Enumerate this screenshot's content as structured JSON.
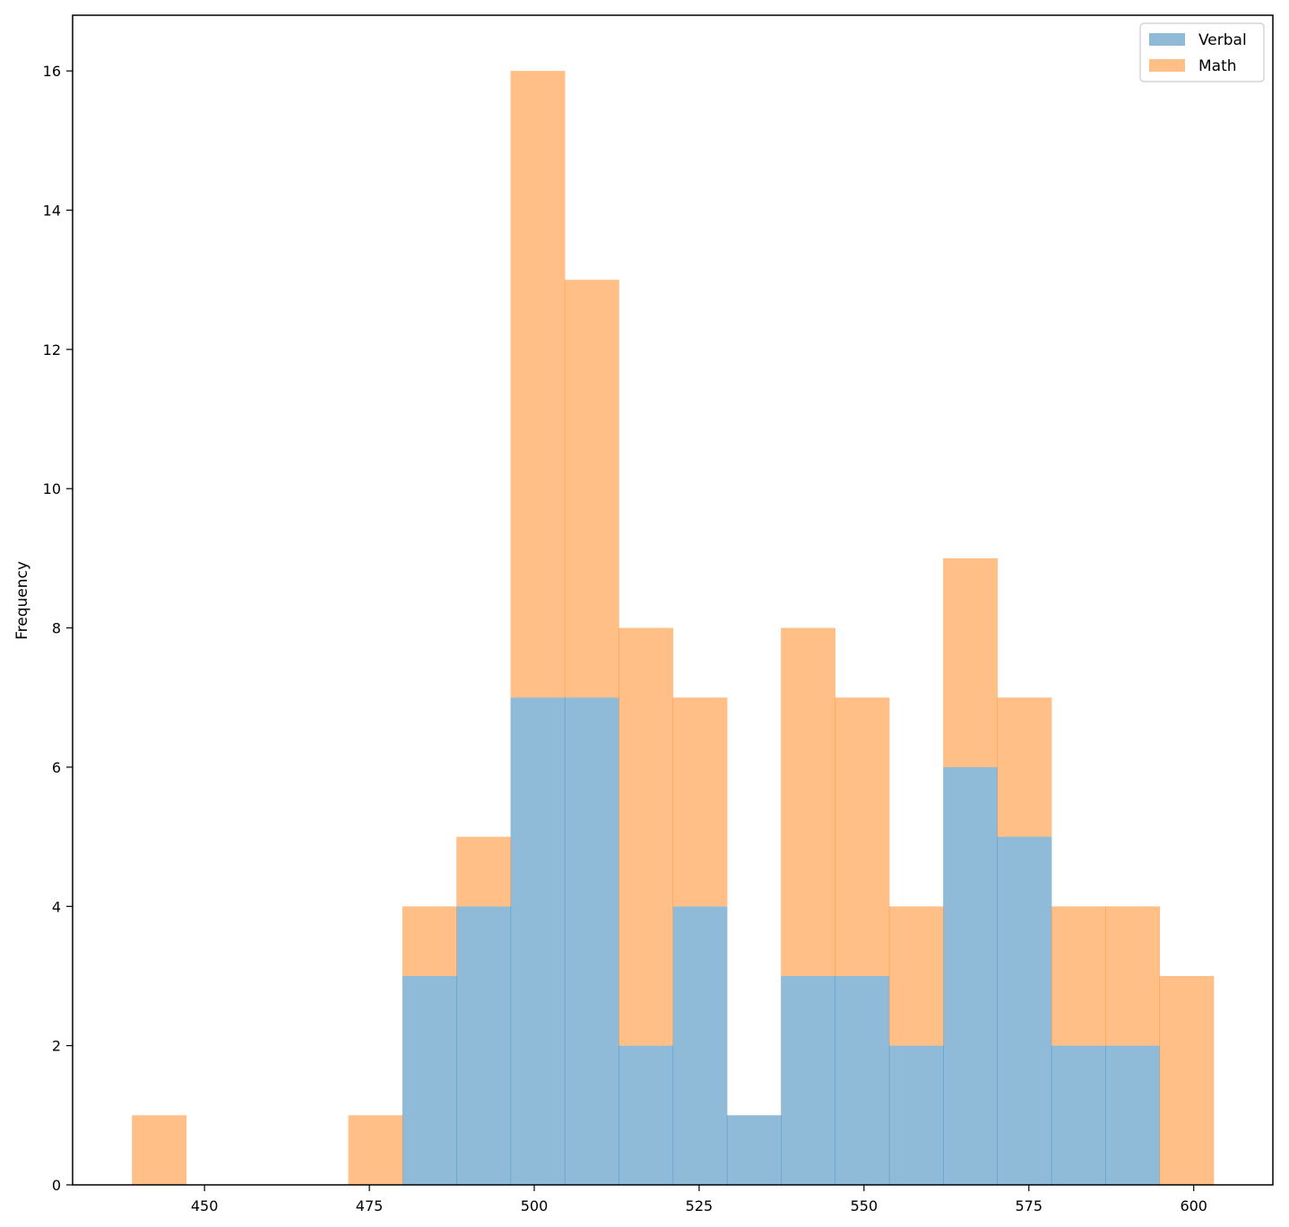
{
  "chart_data": {
    "type": "bar",
    "subtype": "stacked-histogram",
    "title": "",
    "xlabel": "",
    "ylabel": "Frequency",
    "xlim": [
      430,
      612
    ],
    "ylim": [
      0,
      16.8
    ],
    "xticks": [
      450,
      475,
      500,
      525,
      550,
      575,
      600
    ],
    "yticks": [
      0,
      2,
      4,
      6,
      8,
      10,
      12,
      14,
      16
    ],
    "bins": [
      439.0,
      447.2,
      455.4,
      463.6,
      471.8,
      480.0,
      488.2,
      496.4,
      504.6,
      512.8,
      521.0,
      529.2,
      537.4,
      545.6,
      553.8,
      562.0,
      570.2,
      578.4,
      586.6,
      594.8,
      603.0
    ],
    "series": [
      {
        "name": "Verbal",
        "color": "#1f77b4",
        "opacity": 0.5,
        "counts": [
          0,
          0,
          0,
          0,
          0,
          3,
          4,
          7,
          7,
          2,
          4,
          1,
          3,
          3,
          2,
          6,
          5,
          2,
          2,
          0
        ]
      },
      {
        "name": "Math",
        "color": "#ff7f0e",
        "opacity": 0.5,
        "counts": [
          1,
          0,
          0,
          0,
          1,
          1,
          1,
          9,
          6,
          6,
          3,
          0,
          5,
          4,
          2,
          3,
          2,
          2,
          2,
          3
        ]
      }
    ],
    "stacked_totals": [
      1,
      0,
      0,
      0,
      1,
      4,
      5,
      16,
      13,
      8,
      7,
      1,
      8,
      7,
      4,
      9,
      7,
      4,
      4,
      3
    ],
    "legend": {
      "position": "top-right",
      "entries": [
        "Verbal",
        "Math"
      ]
    },
    "grid": false
  }
}
